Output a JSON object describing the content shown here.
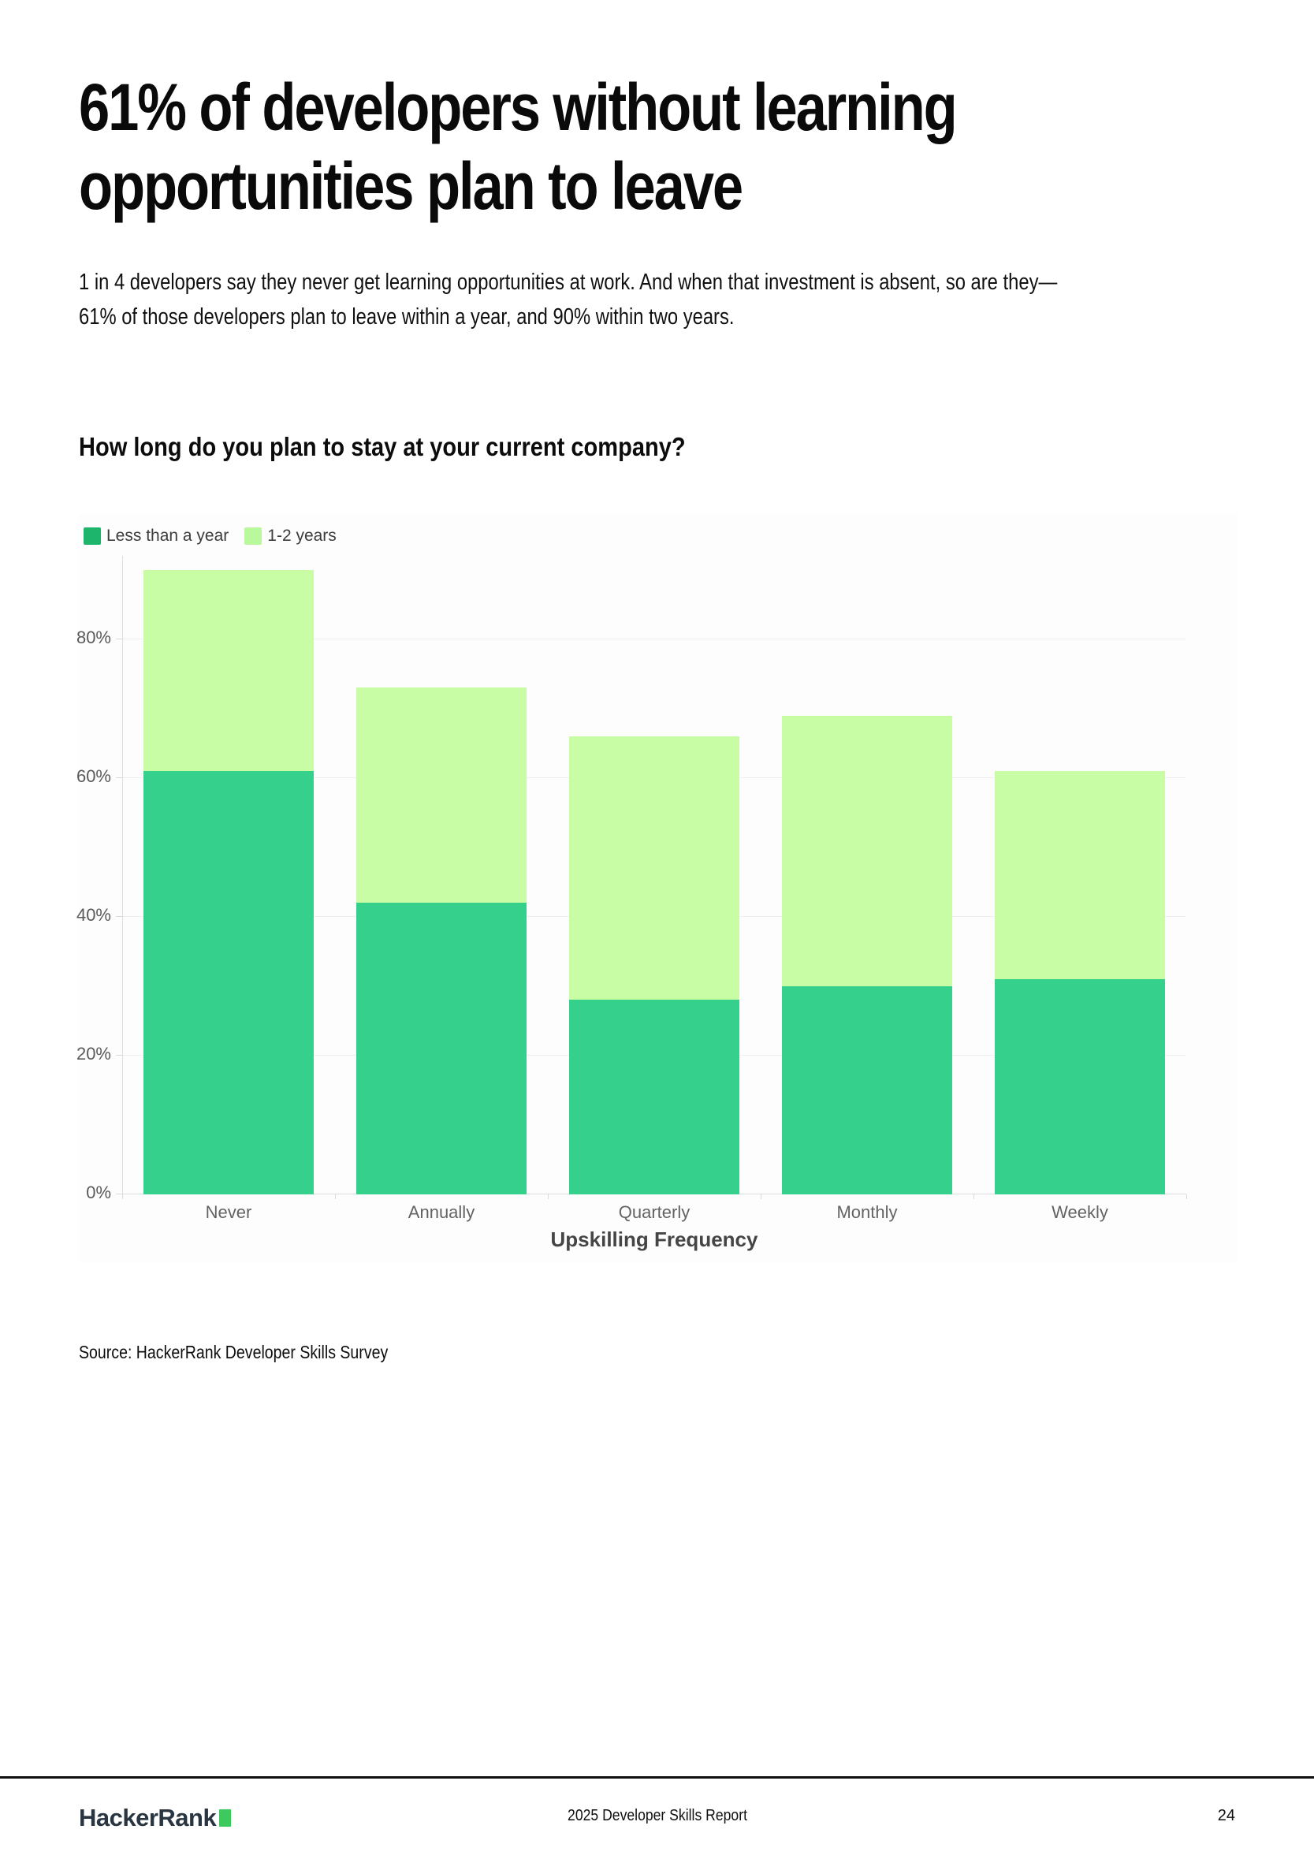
{
  "page": {
    "title_lines": [
      "61% of developers without learning",
      "opportunities plan to leave"
    ],
    "intro_lines": [
      "1 in 4 developers say they never get learning opportunities at work. And when that investment is absent, so are they—",
      "61% of those developers plan to leave within a year, and 90% within two years."
    ],
    "question": "How long do you plan to stay at your current company?",
    "source": "Source: HackerRank Developer Skills Survey"
  },
  "chart_data": {
    "type": "bar",
    "stacked": true,
    "title": "How long do you plan to stay at your current company?",
    "categories": [
      "Never",
      "Annually",
      "Quarterly",
      "Monthly",
      "Weekly"
    ],
    "series": [
      {
        "name": "Less than a year",
        "values": [
          61,
          42,
          28,
          30,
          31
        ],
        "color": "#34d08c",
        "swatch": "#1db46c"
      },
      {
        "name": "1-2 years",
        "values": [
          29,
          31,
          38,
          39,
          30
        ],
        "color": "#c8fda6",
        "swatch": "#baf89d"
      }
    ],
    "stack_totals": [
      90,
      73,
      66,
      69,
      61
    ],
    "xlabel": "Upskilling Frequency",
    "ylabel": "",
    "y_ticks": [
      "0%",
      "20%",
      "40%",
      "60%",
      "80%"
    ],
    "ylim": [
      0,
      92
    ],
    "grid": true,
    "legend_position": "top-left"
  },
  "footer": {
    "logo_text": "HackerRank",
    "logo_accent": "#3ec95f",
    "report_title": "2025 Developer Skills Report",
    "page_number": "24"
  }
}
